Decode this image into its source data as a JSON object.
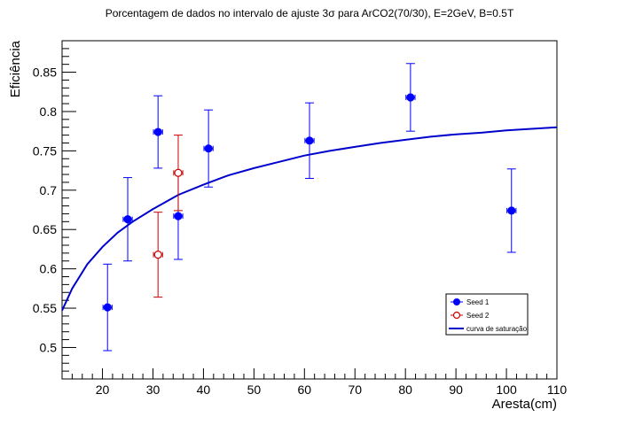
{
  "chart_data": {
    "type": "scatter",
    "title": "Porcentagem de dados no intervalo de ajuste 3σ para ArCO2(70/30), E=2GeV, B=0.5T",
    "xlabel": "Aresta(cm)",
    "ylabel": "Eficiência",
    "xlim": [
      12,
      110
    ],
    "ylim": [
      0.46,
      0.89
    ],
    "x_ticks": [
      "20",
      "30",
      "40",
      "50",
      "60",
      "70",
      "80",
      "90",
      "100",
      "110"
    ],
    "y_ticks": [
      "0.5",
      "0.55",
      "0.6",
      "0.65",
      "0.7",
      "0.75",
      "0.8",
      "0.85"
    ],
    "grid": false,
    "legend_position": "bottom-right",
    "series": [
      {
        "name": "Seed 1",
        "color": "#0000ff",
        "marker": "filled-circle",
        "points": [
          {
            "x": 21,
            "y": 0.551,
            "yerr": 0.055,
            "xerr": 0.9
          },
          {
            "x": 25,
            "y": 0.663,
            "yerr": 0.053,
            "xerr": 0.9
          },
          {
            "x": 31,
            "y": 0.774,
            "yerr": 0.046,
            "xerr": 0.9
          },
          {
            "x": 35,
            "y": 0.667,
            "yerr": 0.055,
            "xerr": 0.9
          },
          {
            "x": 41,
            "y": 0.753,
            "yerr": 0.049,
            "xerr": 0.9
          },
          {
            "x": 61,
            "y": 0.763,
            "yerr": 0.048,
            "xerr": 0.9
          },
          {
            "x": 81,
            "y": 0.818,
            "yerr": 0.043,
            "xerr": 0.9
          },
          {
            "x": 101,
            "y": 0.674,
            "yerr": 0.053,
            "xerr": 0.9
          }
        ]
      },
      {
        "name": "Seed 2",
        "color": "#cc0000",
        "marker": "open-circle",
        "points": [
          {
            "x": 31,
            "y": 0.618,
            "yerr": 0.054,
            "xerr": 0.9
          },
          {
            "x": 35,
            "y": 0.722,
            "yerr": 0.048,
            "xerr": 0.9
          }
        ]
      },
      {
        "name": "curva de saturação",
        "color": "#0000cc",
        "type": "line",
        "x": [
          12,
          14,
          17,
          20,
          23,
          26,
          30,
          35,
          40,
          45,
          50,
          55,
          60,
          65,
          70,
          75,
          80,
          85,
          90,
          95,
          100,
          105,
          110
        ],
        "y": [
          0.547,
          0.575,
          0.606,
          0.628,
          0.646,
          0.66,
          0.676,
          0.694,
          0.707,
          0.719,
          0.728,
          0.736,
          0.744,
          0.75,
          0.755,
          0.76,
          0.764,
          0.768,
          0.771,
          0.773,
          0.776,
          0.778,
          0.78
        ]
      }
    ]
  }
}
